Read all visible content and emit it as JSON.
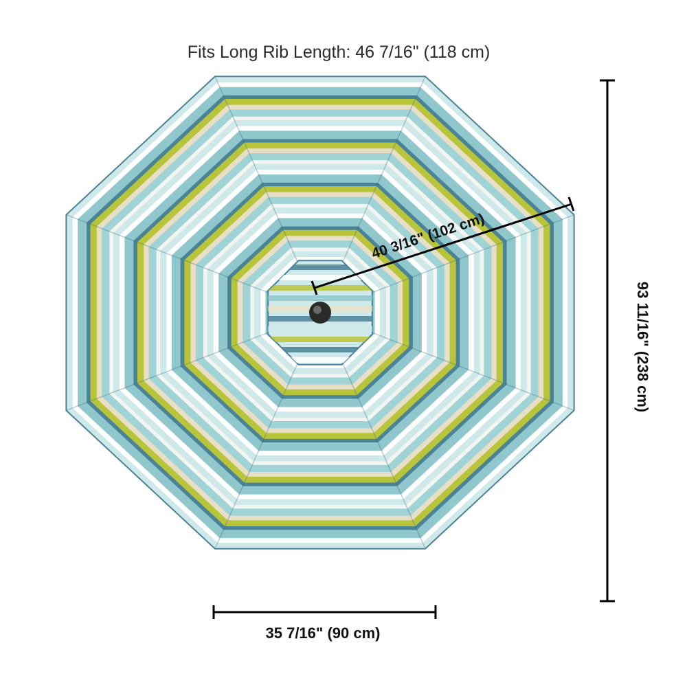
{
  "title": "Fits Long Rib Length: 46 7/16\" (118 cm)",
  "dimensions": {
    "diagonal": "40 3/16\" (102 cm)",
    "height": "93 11/16\" (238 cm)",
    "bottom": "35 7/16\" (90 cm)"
  },
  "canopy": {
    "panels": 8,
    "stripe_colors": [
      "#cfe9ea",
      "#ffffff",
      "#8fc7cd",
      "#4a8296",
      "#b8c43a",
      "#e9dfc6",
      "#9fd3d6",
      "#f3f5f1"
    ],
    "outline_color": "#4a8296",
    "hub_color": "#2a2a2a"
  }
}
